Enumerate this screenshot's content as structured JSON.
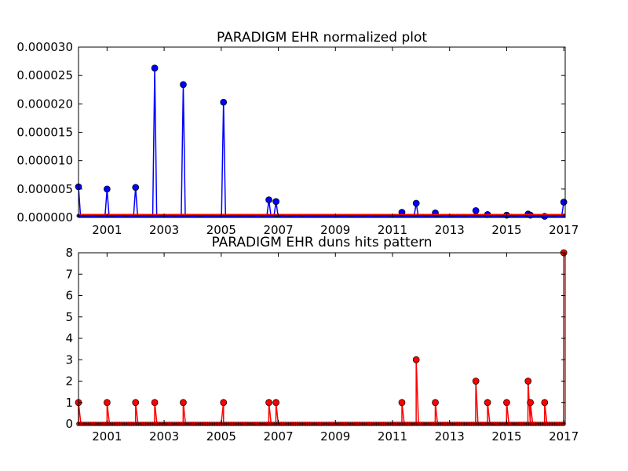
{
  "chart_data": [
    {
      "type": "line",
      "title": "PARADIGM EHR normalized plot",
      "xlabel": "",
      "ylabel": "",
      "xlim": [
        2000.0,
        2017.05
      ],
      "ylim": [
        0,
        3e-05
      ],
      "x_ticks": [
        "2001",
        "2003",
        "2005",
        "2007",
        "2009",
        "2011",
        "2013",
        "2015",
        "2017"
      ],
      "y_ticks": [
        "0.000000",
        "0.000005",
        "0.000010",
        "0.000015",
        "0.000020",
        "0.000025",
        "0.000030"
      ],
      "series": [
        {
          "color": "#0000ff",
          "marker": "circle",
          "baseline": 3e-07,
          "points": [
            [
              2000.0,
              5.4e-06
            ],
            [
              2001.0,
              5e-06
            ],
            [
              2002.0,
              5.3e-06
            ],
            [
              2002.67,
              2.63e-05
            ],
            [
              2003.67,
              2.34e-05
            ],
            [
              2005.08,
              2.03e-05
            ],
            [
              2006.67,
              3.1e-06
            ],
            [
              2006.92,
              2.8e-06
            ],
            [
              2011.33,
              9e-07
            ],
            [
              2011.83,
              2.5e-06
            ],
            [
              2012.5,
              8e-07
            ],
            [
              2013.92,
              1.2e-06
            ],
            [
              2014.33,
              5e-07
            ],
            [
              2015.0,
              4e-07
            ],
            [
              2015.75,
              6e-07
            ],
            [
              2015.83,
              4e-07
            ],
            [
              2016.33,
              2e-07
            ],
            [
              2017.0,
              2.7e-06
            ]
          ]
        },
        {
          "color": "#ff0000",
          "marker": "none",
          "constant": 5e-07
        }
      ]
    },
    {
      "type": "line",
      "title": "PARADIGM EHR duns hits pattern",
      "xlabel": "",
      "ylabel": "",
      "xlim": [
        2000.0,
        2017.05
      ],
      "ylim": [
        0,
        8
      ],
      "x_ticks": [
        "2001",
        "2003",
        "2005",
        "2007",
        "2009",
        "2011",
        "2013",
        "2015",
        "2017"
      ],
      "y_ticks": [
        "0",
        "1",
        "2",
        "3",
        "4",
        "5",
        "6",
        "7",
        "8"
      ],
      "series": [
        {
          "color": "#ff0000",
          "marker": "circle",
          "sampling_step_years": 0.0833,
          "points": [
            [
              2000.0,
              1
            ],
            [
              2001.0,
              1
            ],
            [
              2002.0,
              1
            ],
            [
              2002.67,
              1
            ],
            [
              2003.67,
              1
            ],
            [
              2005.08,
              1
            ],
            [
              2006.67,
              1
            ],
            [
              2006.92,
              1
            ],
            [
              2011.33,
              1
            ],
            [
              2011.83,
              3
            ],
            [
              2012.5,
              1
            ],
            [
              2013.92,
              2
            ],
            [
              2014.33,
              1
            ],
            [
              2015.0,
              1
            ],
            [
              2015.75,
              2
            ],
            [
              2015.83,
              1
            ],
            [
              2016.33,
              1
            ],
            [
              2017.0,
              8
            ]
          ]
        }
      ]
    }
  ]
}
